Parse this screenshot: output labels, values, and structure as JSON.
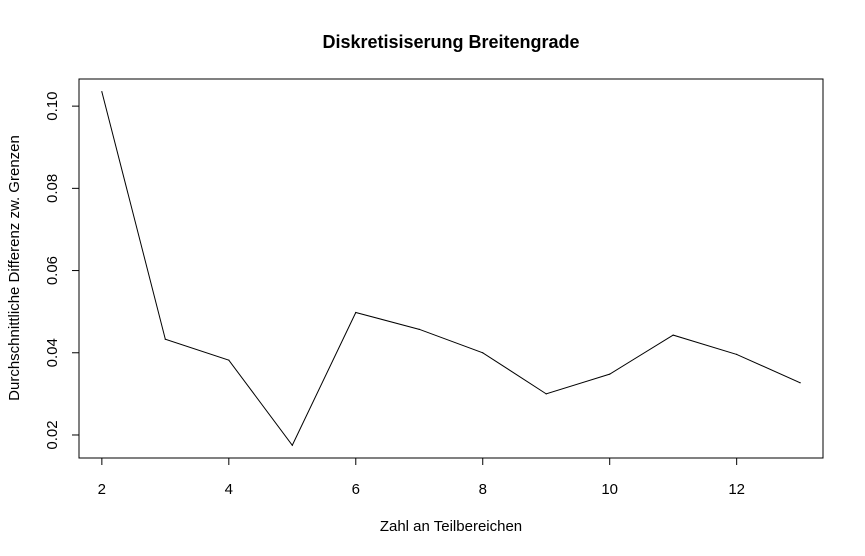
{
  "chart_data": {
    "type": "line",
    "title": "Diskretisiserung Breitengrade",
    "xlabel": "Zahl an Teilbereichen",
    "ylabel": "Durchschnittliche Differenz zw. Grenzen",
    "x": [
      2,
      3,
      4,
      5,
      6,
      7,
      8,
      9,
      10,
      11,
      12,
      13
    ],
    "series": [
      {
        "values": [
          0.1035,
          0.0433,
          0.0382,
          0.0175,
          0.0498,
          0.0457,
          0.04,
          0.03,
          0.0348,
          0.0443,
          0.0396,
          0.0327
        ]
      }
    ],
    "xlim": [
      1.64,
      13.36
    ],
    "ylim": [
      0.0144,
      0.1066
    ],
    "xticks": [
      2,
      4,
      6,
      8,
      10,
      12
    ],
    "xtick_labels": [
      "2",
      "4",
      "6",
      "8",
      "10",
      "12"
    ],
    "yticks": [
      0.02,
      0.04,
      0.06,
      0.08,
      0.1
    ],
    "ytick_labels": [
      "0.02",
      "0.04",
      "0.06",
      "0.08",
      "0.10"
    ],
    "grid": false,
    "line_color": "#000000"
  }
}
